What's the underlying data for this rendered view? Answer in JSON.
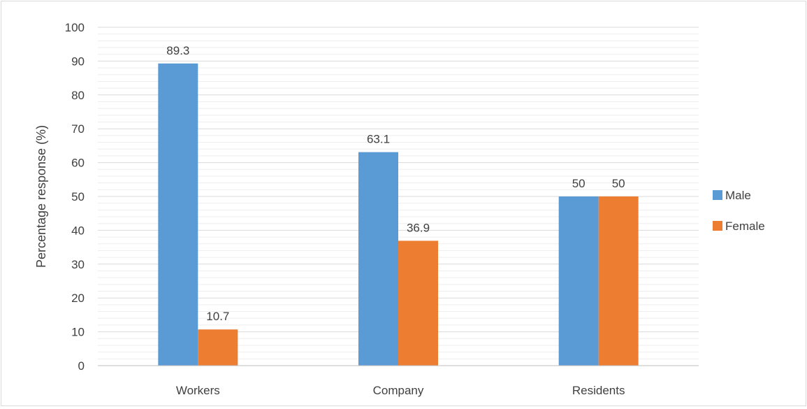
{
  "chart_data": {
    "type": "bar",
    "title": "",
    "xlabel": "",
    "ylabel": "Percentage response (%)",
    "ylim": [
      0,
      100
    ],
    "yticks": [
      "0",
      "10",
      "20",
      "30",
      "40",
      "50",
      "60",
      "70",
      "80",
      "90",
      "100"
    ],
    "categories": [
      "Workers",
      "Company",
      "Residents"
    ],
    "series": [
      {
        "name": "Male",
        "color": "#5b9bd5",
        "values": [
          89.3,
          63.1,
          50
        ],
        "labels": [
          "89.3",
          "63.1",
          "50"
        ]
      },
      {
        "name": "Female",
        "color": "#ed7d31",
        "values": [
          10.7,
          36.9,
          50
        ],
        "labels": [
          "10.7",
          "36.9",
          "50"
        ]
      }
    ],
    "grid": true,
    "legend": "right"
  }
}
